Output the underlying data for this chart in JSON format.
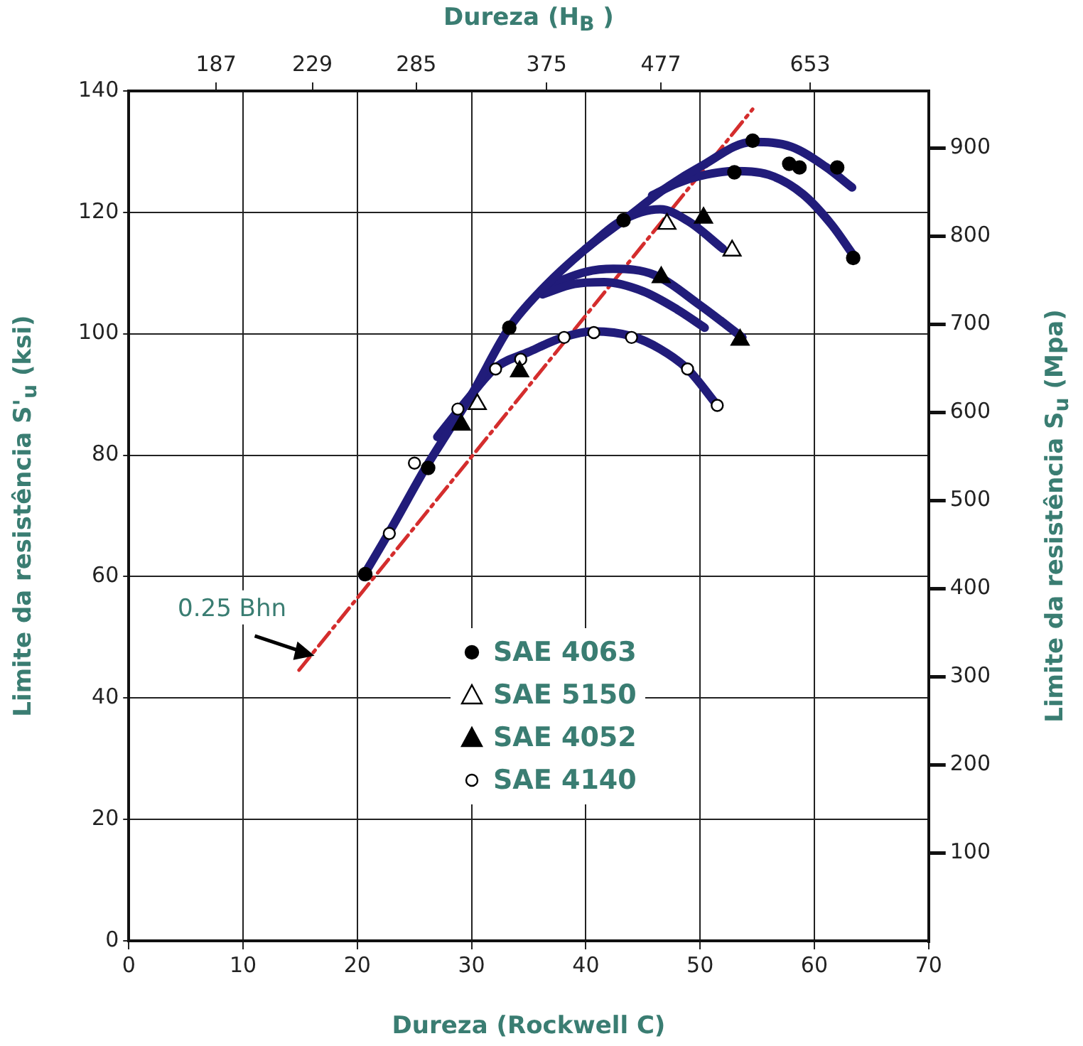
{
  "chart_data": {
    "type": "scatter",
    "xlabel": "Dureza (Rockwell C)",
    "ylabel": "Limite da resistência  S'$_{u}$ (ksi)",
    "y2label": "Limite da resistência  S$_{u}$ (Mpa)",
    "x2label": "Dureza (H$_{B}$ )",
    "xlim": [
      0,
      70
    ],
    "xticks": [
      0,
      10,
      20,
      30,
      40,
      50,
      60,
      70
    ],
    "ylim": [
      0,
      140
    ],
    "yticks": [
      0,
      20,
      40,
      60,
      80,
      100,
      120,
      140
    ],
    "y2lim": [
      0,
      965
    ],
    "y2ticks": [
      100,
      200,
      300,
      400,
      500,
      600,
      700,
      800,
      900
    ],
    "x2lim": [
      155.6,
      838
    ],
    "x2ticks": [
      187,
      229,
      285,
      375,
      477,
      653
    ],
    "log": "x2",
    "grid": true,
    "legend": "bottom",
    "annotations": [
      {
        "text": "0.25 Bhn",
        "x": 16.5,
        "y": 46.5
      }
    ],
    "series": [
      {
        "type": "line",
        "color": "#211c7a",
        "x": [
          20.5,
          23,
          26,
          28,
          30,
          33.3,
          36,
          40,
          43.3,
          47,
          50,
          54.6,
          58,
          61,
          63.3
        ],
        "values": [
          60,
          68,
          78,
          84,
          90,
          101,
          107,
          114,
          118.7,
          124,
          127.5,
          131.6,
          130.8,
          127.5,
          124.1
        ]
      },
      {
        "type": "line",
        "color": "#211c7a",
        "x": [
          45.8,
          48,
          50,
          53,
          56,
          59,
          61.5,
          63.4
        ],
        "values": [
          122.8,
          124.8,
          126,
          126.8,
          126.2,
          123,
          118,
          113
        ]
      },
      {
        "type": "line",
        "color": "#211c7a",
        "x": [
          40,
          43,
          46.5,
          49,
          52
        ],
        "values": [
          114,
          118.5,
          120.5,
          118.5,
          114
        ]
      },
      {
        "type": "line",
        "color": "#211c7a",
        "x": [
          36.2,
          39,
          41.6,
          45,
          48,
          50.4
        ],
        "values": [
          106.5,
          108.2,
          108.5,
          107,
          104,
          101
        ]
      },
      {
        "type": "line",
        "color": "#211c7a",
        "x": [
          37,
          40,
          42.4,
          46,
          50,
          53.7
        ],
        "values": [
          108.2,
          110.2,
          110.7,
          109.7,
          104.7,
          99.4
        ]
      },
      {
        "type": "line",
        "color": "#211c7a",
        "x": [
          27,
          30,
          32.1,
          35,
          38,
          40.7,
          44,
          46.5,
          48.9,
          51.5
        ],
        "values": [
          83,
          90,
          94.4,
          97,
          99.4,
          100.4,
          99.6,
          97.5,
          94.2,
          88.2
        ]
      },
      {
        "type": "line",
        "color": "#d42d2d",
        "line_style": "dashed",
        "x": [
          14.9,
          54.6
        ],
        "values": [
          44.6,
          137
        ]
      },
      {
        "name": "SAE 4063",
        "marker": "circle",
        "color": "#000000",
        "x": [
          20.7,
          26.2,
          33.3,
          43.3,
          53,
          54.6,
          57.8,
          58.7,
          62,
          63.4
        ],
        "values": [
          60.4,
          77.9,
          101,
          118.7,
          126.6,
          131.8,
          128,
          127.4,
          127.4,
          112.5
        ]
      },
      {
        "name": "SAE 5150",
        "marker": "triangle",
        "color": "#ffffff",
        "x": [
          30.5,
          47.1,
          52.8
        ],
        "values": [
          88.4,
          118.1,
          113.7
        ]
      },
      {
        "name": "SAE 4052",
        "marker": "triangle",
        "color": "#000000",
        "x": [
          29.1,
          34.2,
          46.6,
          50.3,
          53.5
        ],
        "values": [
          85,
          93.8,
          109.3,
          119.1,
          99
        ]
      },
      {
        "name": "SAE 4140",
        "marker": "circle",
        "color": "#ffffff",
        "x": [
          22.8,
          25,
          28.8,
          32.1,
          34.3,
          38.1,
          40.7,
          44,
          48.9,
          51.5
        ],
        "values": [
          67.1,
          78.7,
          87.6,
          94.2,
          95.8,
          99.4,
          100.2,
          99.4,
          94.2,
          88.2
        ]
      }
    ]
  }
}
